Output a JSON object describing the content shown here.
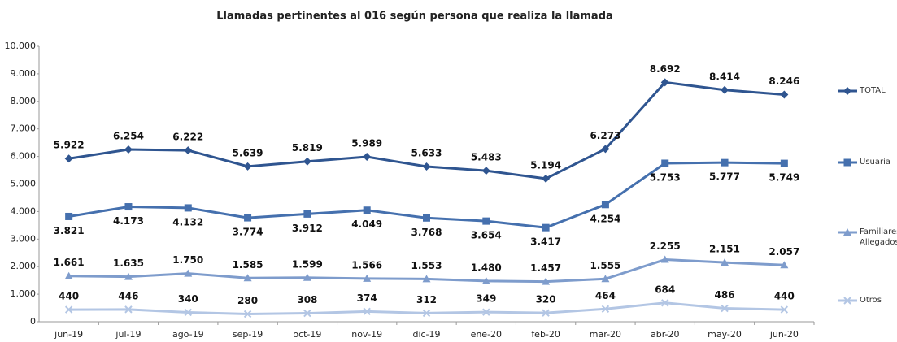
{
  "chart_data": {
    "type": "line",
    "title": "Llamadas pertinentes al 016 según persona que realiza la llamada",
    "categories": [
      "jun-19",
      "jul-19",
      "ago-19",
      "sep-19",
      "oct-19",
      "nov-19",
      "dic-19",
      "ene-20",
      "feb-20",
      "mar-20",
      "abr-20",
      "may-20",
      "jun-20"
    ],
    "series": [
      {
        "name": "TOTAL",
        "color": "#2f5590",
        "marker": "diamond",
        "label_position": "above",
        "values": [
          5922,
          6254,
          6222,
          5639,
          5819,
          5989,
          5633,
          5483,
          5194,
          6273,
          8692,
          8414,
          8246
        ],
        "value_labels": [
          "5.922",
          "6.254",
          "6.222",
          "5.639",
          "5.819",
          "5.989",
          "5.633",
          "5.483",
          "5.194",
          "6.273",
          "8.692",
          "8.414",
          "8.246"
        ]
      },
      {
        "name": "Usuaria",
        "color": "#4570ae",
        "marker": "square",
        "label_position": "below",
        "values": [
          3821,
          4173,
          4132,
          3774,
          3912,
          4049,
          3768,
          3654,
          3417,
          4254,
          5753,
          5777,
          5749
        ],
        "value_labels": [
          "3.821",
          "4.173",
          "4.132",
          "3.774",
          "3.912",
          "4.049",
          "3.768",
          "3.654",
          "3.417",
          "4.254",
          "5.753",
          "5.777",
          "5.749"
        ]
      },
      {
        "name": "Familiares/ Allegados",
        "color": "#7e9ccc",
        "marker": "triangle",
        "label_position": "above",
        "values": [
          1661,
          1635,
          1750,
          1585,
          1599,
          1566,
          1553,
          1480,
          1457,
          1555,
          2255,
          2151,
          2057
        ],
        "value_labels": [
          "1.661",
          "1.635",
          "1.750",
          "1.585",
          "1.599",
          "1.566",
          "1.553",
          "1.480",
          "1.457",
          "1.555",
          "2.255",
          "2.151",
          "2.057"
        ]
      },
      {
        "name": "Otros",
        "color": "#b3c6e4",
        "marker": "x",
        "label_position": "above",
        "values": [
          440,
          446,
          340,
          280,
          308,
          374,
          312,
          349,
          320,
          464,
          684,
          486,
          440
        ]
      }
    ],
    "ylim": [
      0,
      10000
    ],
    "yticks": [
      0,
      {
        "value": 1000,
        "label": "1.000"
      },
      {
        "value": 2000,
        "label": "2.000"
      },
      {
        "value": 3000,
        "label": "3.000"
      },
      {
        "value": 4000,
        "label": "4.000"
      },
      {
        "value": 5000,
        "label": "5.000"
      },
      {
        "value": 6000,
        "label": "6.000"
      },
      {
        "value": 7000,
        "label": "7.000"
      },
      {
        "value": 8000,
        "label": "8.000"
      },
      {
        "value": 9000,
        "label": "9.000"
      },
      {
        "value": 10000,
        "label": "10.000"
      }
    ],
    "grid": false,
    "legend": "right"
  }
}
